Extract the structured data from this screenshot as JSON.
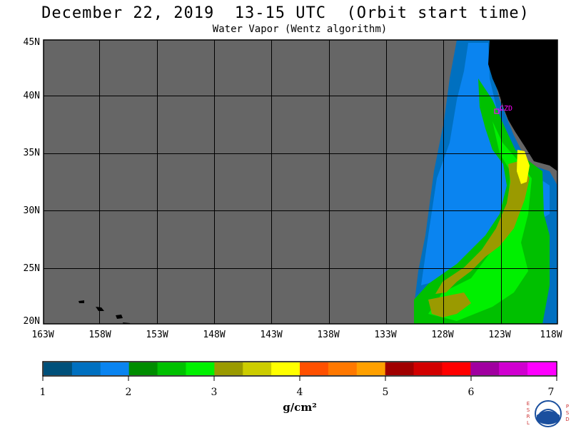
{
  "title": "December 22, 2019  13-15 UTC  (Orbit start time)",
  "subtitle": "Water Vapor (Wentz algorithm)",
  "map": {
    "lat_labels": [
      "45N",
      "40N",
      "35N",
      "30N",
      "25N",
      "20N"
    ],
    "lon_labels": [
      "163W",
      "158W",
      "153W",
      "148W",
      "143W",
      "138W",
      "133W",
      "128W",
      "123W",
      "118W"
    ],
    "station_label": "CZD",
    "colors": {
      "no_data": "#666666",
      "land": "#000000",
      "grid": "#000000",
      "station": "#ff00ff"
    }
  },
  "colorbar": {
    "ticks": [
      "1",
      "2",
      "3",
      "4",
      "5",
      "6",
      "7"
    ],
    "unit": "g/cm²",
    "colors": [
      "#00507a",
      "#0070c0",
      "#0a84f0",
      "#008c00",
      "#00c000",
      "#00f000",
      "#9a9a00",
      "#cccc00",
      "#ffff00",
      "#ff5000",
      "#ff7800",
      "#ffa000",
      "#a00000",
      "#d20000",
      "#ff0000",
      "#a000a0",
      "#d000d0",
      "#ff00ff"
    ]
  },
  "logo": {
    "left_letters": [
      "E",
      "S",
      "R",
      "L"
    ],
    "right_letters": [
      "P",
      "S",
      "D"
    ]
  }
}
